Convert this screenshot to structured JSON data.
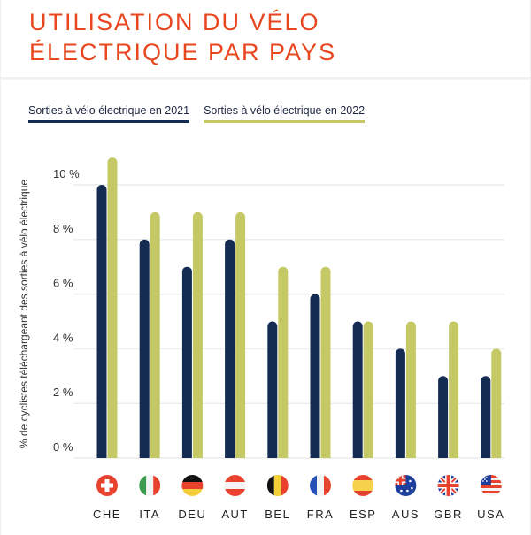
{
  "title": "UTILISATION DU VÉLO\nÉLECTRIQUE PAR PAYS",
  "colors": {
    "title": "#e8461e",
    "series_2021": "#142c52",
    "series_2022": "#c4c966",
    "grid": "#ececec"
  },
  "chart_data": {
    "type": "bar",
    "title": "UTILISATION DU VÉLO ÉLECTRIQUE PAR PAYS",
    "xlabel": "",
    "ylabel": "% de cyclistes téléchargeant des sorties à vélo électrique",
    "categories": [
      "CHE",
      "ITA",
      "DEU",
      "AUT",
      "BEL",
      "FRA",
      "ESP",
      "AUS",
      "GBR",
      "USA"
    ],
    "flags": [
      "switzerland-flag-icon",
      "italy-flag-icon",
      "germany-flag-icon",
      "austria-flag-icon",
      "belgium-flag-icon",
      "france-flag-icon",
      "spain-flag-icon",
      "australia-flag-icon",
      "uk-flag-icon",
      "usa-flag-icon"
    ],
    "series": [
      {
        "name": "Sorties à vélo électrique en 2021",
        "values": [
          10,
          8,
          7,
          8,
          5,
          6,
          5,
          4,
          3,
          3
        ]
      },
      {
        "name": "Sorties à vélo électrique en 2022",
        "values": [
          11,
          9,
          9,
          9,
          7,
          7,
          5,
          5,
          5,
          4
        ]
      }
    ],
    "yticks": [
      0,
      2,
      4,
      6,
      8,
      10
    ],
    "ytick_labels": [
      "0 %",
      "2 %",
      "4 %",
      "6 %",
      "8 %",
      "10 %"
    ],
    "ylim": [
      0,
      11
    ],
    "grid": true,
    "legend_position": "top-left"
  }
}
